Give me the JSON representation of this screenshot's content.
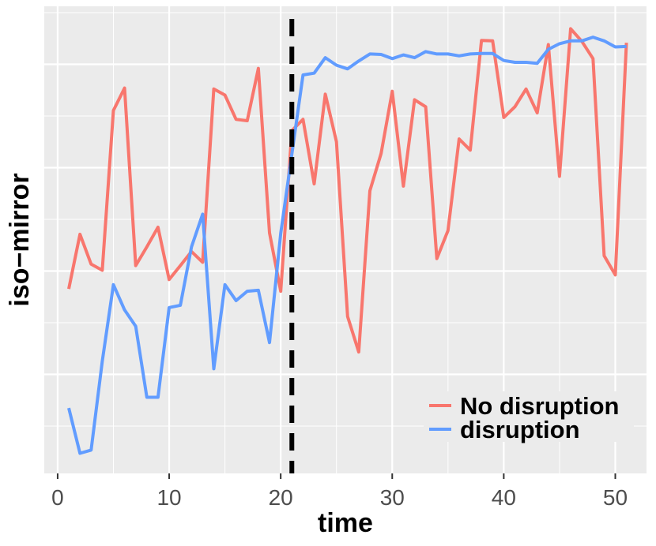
{
  "chart_data": {
    "type": "line",
    "title": "",
    "xlabel": "time",
    "ylabel": "iso−mirror",
    "xlim": [
      -1.2,
      52.8
    ],
    "ylim": [
      0,
      1
    ],
    "x_ticks": [
      0,
      10,
      20,
      30,
      40,
      50
    ],
    "x_tick_labels": [
      "0",
      "10",
      "20",
      "30",
      "40",
      "50"
    ],
    "y_ticks_shown": false,
    "grid": true,
    "legend_position": "bottom-right",
    "vline": {
      "x": 21,
      "style": "dashed",
      "color": "#000000"
    },
    "series": [
      {
        "name": "No disruption",
        "color": "#F8766D",
        "x": [
          1,
          2,
          3,
          4,
          5,
          6,
          7,
          8,
          9,
          10,
          11,
          12,
          13,
          14,
          15,
          16,
          17,
          18,
          19,
          20,
          21,
          22,
          23,
          24,
          25,
          26,
          27,
          28,
          29,
          30,
          31,
          32,
          33,
          34,
          35,
          36,
          37,
          38,
          39,
          40,
          41,
          42,
          43,
          44,
          45,
          46,
          47,
          48,
          49,
          50,
          51
        ],
        "y": [
          0.395,
          0.512,
          0.448,
          0.435,
          0.777,
          0.825,
          0.445,
          0.485,
          0.527,
          0.415,
          0.445,
          0.475,
          0.452,
          0.823,
          0.81,
          0.758,
          0.755,
          0.867,
          0.515,
          0.39,
          0.734,
          0.758,
          0.62,
          0.812,
          0.71,
          0.336,
          0.26,
          0.605,
          0.685,
          0.818,
          0.615,
          0.8,
          0.785,
          0.46,
          0.52,
          0.716,
          0.692,
          0.927,
          0.926,
          0.762,
          0.785,
          0.823,
          0.772,
          0.918,
          0.636,
          0.952,
          0.925,
          0.888,
          0.466,
          0.425,
          0.922
        ]
      },
      {
        "name": "disruption",
        "color": "#619CFF",
        "x": [
          1,
          2,
          3,
          4,
          5,
          6,
          7,
          8,
          9,
          10,
          11,
          12,
          13,
          14,
          15,
          16,
          17,
          18,
          19,
          20,
          21,
          22,
          23,
          24,
          25,
          26,
          27,
          28,
          29,
          30,
          31,
          32,
          33,
          34,
          35,
          36,
          37,
          38,
          39,
          40,
          41,
          42,
          43,
          44,
          45,
          46,
          47,
          48,
          49,
          50,
          51
        ],
        "y": [
          0.14,
          0.043,
          0.05,
          0.24,
          0.404,
          0.35,
          0.315,
          0.163,
          0.163,
          0.355,
          0.36,
          0.485,
          0.555,
          0.224,
          0.404,
          0.37,
          0.39,
          0.392,
          0.28,
          0.514,
          0.684,
          0.853,
          0.857,
          0.89,
          0.874,
          0.866,
          0.883,
          0.898,
          0.897,
          0.888,
          0.896,
          0.89,
          0.903,
          0.898,
          0.898,
          0.894,
          0.898,
          0.899,
          0.899,
          0.884,
          0.88,
          0.88,
          0.878,
          0.908,
          0.92,
          0.926,
          0.926,
          0.934,
          0.926,
          0.913,
          0.914
        ]
      }
    ]
  }
}
